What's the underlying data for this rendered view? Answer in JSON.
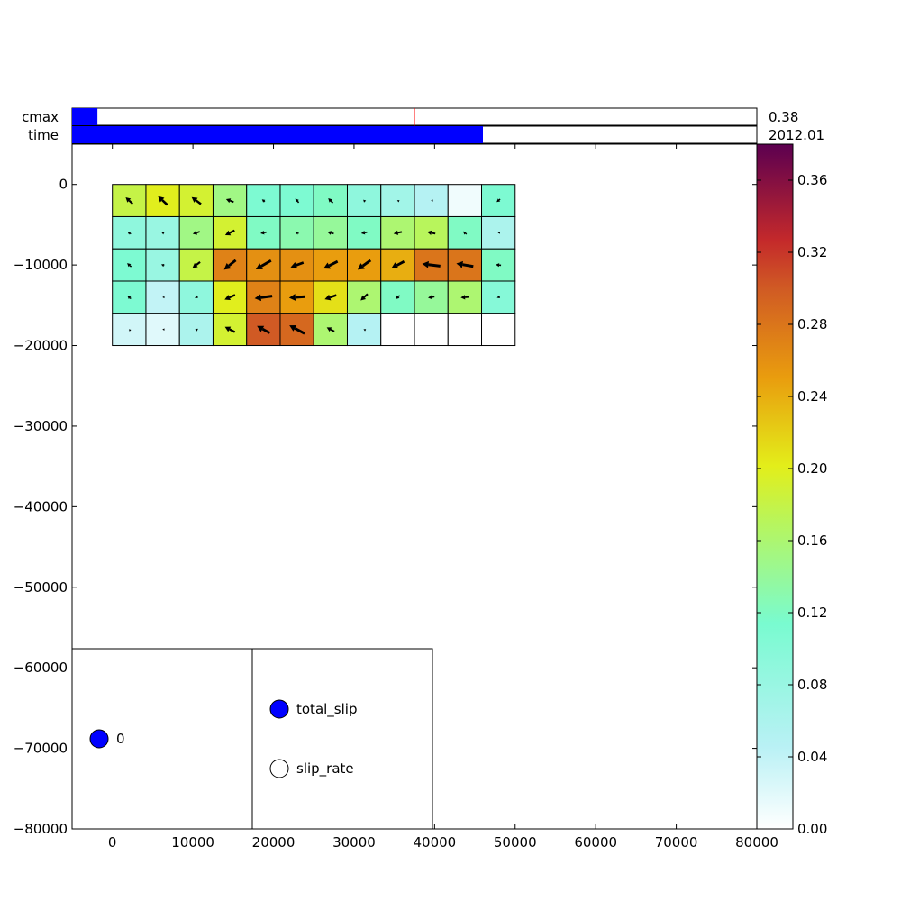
{
  "sliders": {
    "cmax": {
      "label": "cmax",
      "value": 0.38,
      "fraction": 0.037,
      "marker_fraction": 0.5,
      "value_text": "0.38"
    },
    "time": {
      "label": "time",
      "fraction": 0.6,
      "value_text": "2012.01"
    }
  },
  "radio_panels": {
    "index": {
      "options": [
        "0"
      ],
      "selected": 0
    },
    "field": {
      "options": [
        "total_slip",
        "slip_rate"
      ],
      "selected": 0
    }
  },
  "colors": {
    "slider_fill": "#0000ff",
    "marker": "#ff0000",
    "radio_selected": "#0000ff",
    "radio_unselected": "#ffffff"
  },
  "chart_data": {
    "type": "heatmap",
    "title": "",
    "xlabel": "",
    "ylabel": "",
    "xlim": [
      -5000,
      80000
    ],
    "ylim": [
      -80000,
      5000
    ],
    "x_ticks": [
      0,
      10000,
      20000,
      30000,
      40000,
      50000,
      60000,
      70000,
      80000
    ],
    "x_tick_labels": [
      "0",
      "10000",
      "20000",
      "30000",
      "40000",
      "50000",
      "60000",
      "70000",
      "80000"
    ],
    "y_ticks": [
      0,
      -10000,
      -20000,
      -30000,
      -40000,
      -50000,
      -60000,
      -70000,
      -80000
    ],
    "y_tick_labels": [
      "0",
      "−10000",
      "−20000",
      "−30000",
      "−40000",
      "−50000",
      "−60000",
      "−70000",
      "−80000"
    ],
    "patch_width": 4167,
    "patch_height": 4000,
    "x_centers": [
      2083,
      6250,
      10417,
      14583,
      18750,
      22917,
      27083,
      31250,
      35417,
      39583,
      43750,
      47917
    ],
    "y_centers": [
      -2000,
      -6000,
      -10000,
      -14000,
      -18000
    ],
    "slip": [
      [
        0.18,
        0.2,
        0.19,
        0.15,
        0.11,
        0.11,
        0.12,
        0.09,
        0.07,
        0.05,
        0.01,
        0.11
      ],
      [
        0.09,
        0.08,
        0.15,
        0.19,
        0.12,
        0.13,
        0.14,
        0.12,
        0.16,
        0.17,
        0.12,
        0.06
      ],
      [
        0.11,
        0.08,
        0.18,
        0.27,
        0.26,
        0.26,
        0.25,
        0.25,
        0.24,
        0.28,
        0.28,
        0.12
      ],
      [
        0.11,
        0.04,
        0.09,
        0.2,
        0.27,
        0.25,
        0.21,
        0.16,
        0.12,
        0.14,
        0.16,
        0.1
      ],
      [
        0.03,
        0.02,
        0.06,
        0.19,
        0.3,
        0.29,
        0.16,
        0.05,
        null,
        null,
        null,
        null
      ]
    ],
    "slip_vectors": [
      [
        [
          -1.2,
          1.1
        ],
        [
          -1.6,
          1.5
        ],
        [
          -1.6,
          1.2
        ],
        [
          -1.3,
          0.5
        ],
        [
          -0.5,
          0.4
        ],
        [
          -0.6,
          0.7
        ],
        [
          -0.8,
          0.8
        ],
        [
          -0.3,
          0.3
        ],
        [
          -0.2,
          0.1
        ],
        [
          -0.1,
          0.0
        ],
        [
          0,
          0
        ],
        [
          -0.6,
          -0.5
        ]
      ],
      [
        [
          -0.6,
          0.4
        ],
        [
          -0.4,
          0.2
        ],
        [
          -1.2,
          -0.4
        ],
        [
          -1.6,
          -0.8
        ],
        [
          -1.0,
          -0.2
        ],
        [
          -0.6,
          0.2
        ],
        [
          -1.1,
          0.3
        ],
        [
          -1.0,
          -0.2
        ],
        [
          -1.4,
          -0.3
        ],
        [
          -1.4,
          0.3
        ],
        [
          -0.6,
          0.5
        ],
        [
          -0.2,
          0.0
        ]
      ],
      [
        [
          -0.7,
          0.6
        ],
        [
          -0.5,
          0.2
        ],
        [
          -1.3,
          -1.0
        ],
        [
          -2.0,
          -1.6
        ],
        [
          -2.6,
          -1.5
        ],
        [
          -2.2,
          -0.8
        ],
        [
          -2.4,
          -1.2
        ],
        [
          -2.2,
          -1.6
        ],
        [
          -2.2,
          -1.2
        ],
        [
          -3.1,
          0.4
        ],
        [
          -2.9,
          0.5
        ],
        [
          -0.9,
          0.1
        ]
      ],
      [
        [
          -0.6,
          0.5
        ],
        [
          -0.1,
          0.0
        ],
        [
          -0.5,
          -0.3
        ],
        [
          -1.8,
          -0.8
        ],
        [
          -3.0,
          -0.4
        ],
        [
          -2.7,
          -0.2
        ],
        [
          -2.0,
          -0.7
        ],
        [
          -1.2,
          -1.1
        ],
        [
          -0.7,
          -0.6
        ],
        [
          -1.1,
          -0.2
        ],
        [
          -1.4,
          -0.1
        ],
        [
          -0.5,
          -0.2
        ]
      ],
      [
        [
          -0.1,
          0.1
        ],
        [
          -0.1,
          0.0
        ],
        [
          -0.4,
          0.2
        ],
        [
          -1.7,
          0.9
        ],
        [
          -2.2,
          1.2
        ],
        [
          -2.6,
          1.4
        ],
        [
          -1.3,
          0.7
        ],
        [
          -0.2,
          0.1
        ],
        null,
        null,
        null,
        null
      ]
    ],
    "colorbar": {
      "min": 0.0,
      "max": 0.38,
      "ticks": [
        0.0,
        0.04,
        0.08,
        0.12,
        0.16,
        0.2,
        0.24,
        0.28,
        0.32,
        0.36
      ],
      "tick_labels": [
        "0.00",
        "0.04",
        "0.08",
        "0.12",
        "0.16",
        "0.20",
        "0.24",
        "0.28",
        "0.32",
        "0.36"
      ],
      "colormap": "jet-like: white to cyan to green to yellow to orange to red to purple"
    },
    "grid": false
  }
}
